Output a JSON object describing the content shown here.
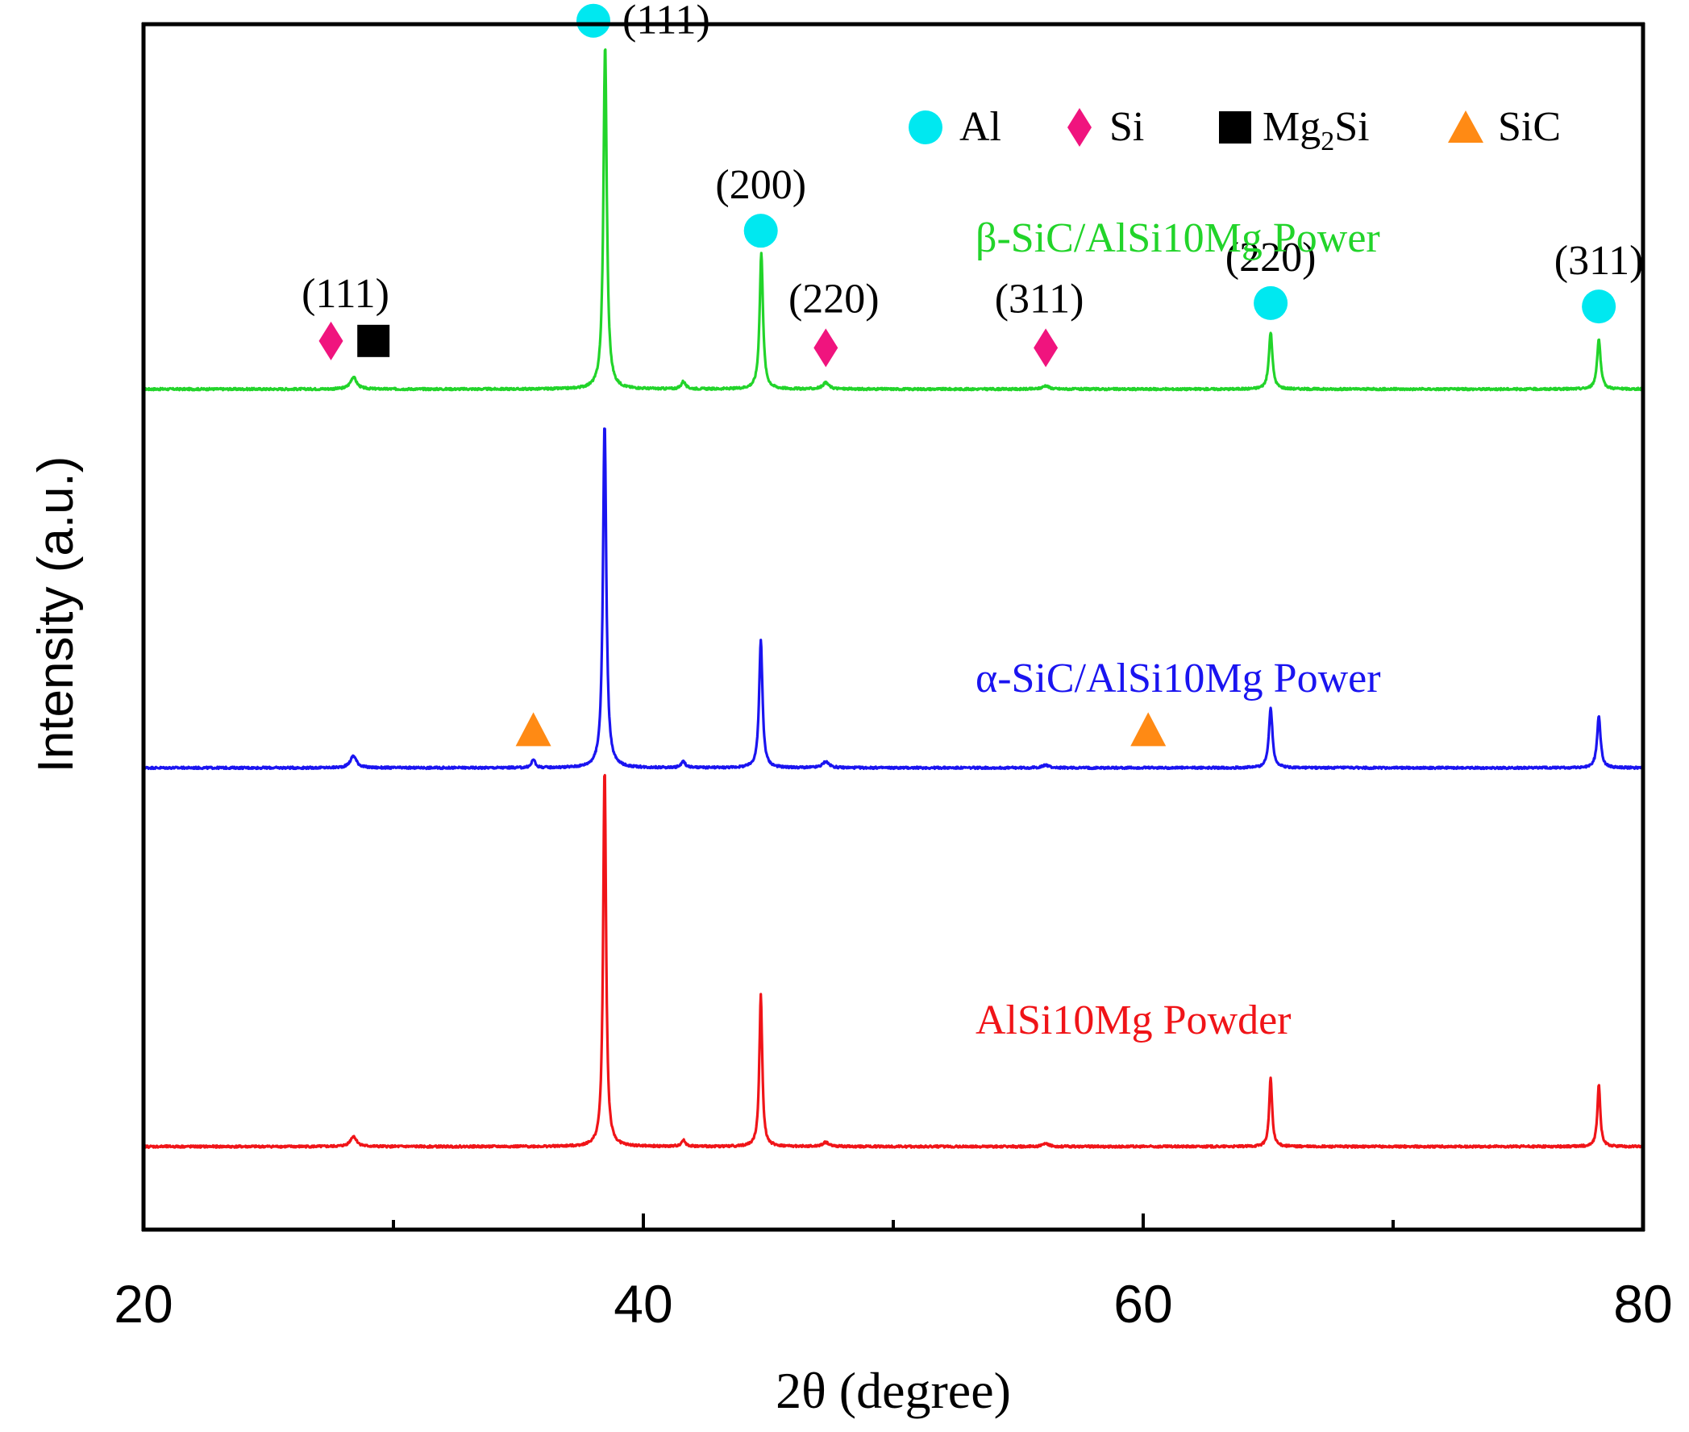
{
  "chart_data": {
    "type": "line",
    "xlabel": "2θ (degree)",
    "ylabel": "Intensity (a.u.)",
    "xlim": [
      20,
      80
    ],
    "xticks": [
      20,
      40,
      60,
      80
    ],
    "xtick_labels": [
      "20",
      "40",
      "60",
      "80"
    ],
    "y_axis_ticks": "none",
    "legend": {
      "position": "top-right",
      "entries": [
        {
          "label": "Al",
          "marker": "circle",
          "color": "#00e8f0"
        },
        {
          "label": "Si",
          "marker": "diamond",
          "color": "#f0147e"
        },
        {
          "label_main": "Mg",
          "label_sub": "2",
          "label_tail": "Si",
          "marker": "square",
          "color": "#000000"
        },
        {
          "label": "SiC",
          "marker": "triangle",
          "color": "#ff8a14"
        }
      ]
    },
    "series": [
      {
        "name": "β-SiC/AlSi10Mg Power",
        "color": "#22d42a",
        "baseline": 2.2,
        "peaks": [
          {
            "x": 28.4,
            "h": 0.035,
            "w": 0.3
          },
          {
            "x": 38.47,
            "h": 1.0,
            "w": 0.16
          },
          {
            "x": 41.6,
            "h": 0.022,
            "w": 0.2
          },
          {
            "x": 44.72,
            "h": 0.395,
            "w": 0.16
          },
          {
            "x": 47.3,
            "h": 0.018,
            "w": 0.3
          },
          {
            "x": 56.1,
            "h": 0.01,
            "w": 0.3
          },
          {
            "x": 65.1,
            "h": 0.165,
            "w": 0.17
          },
          {
            "x": 78.23,
            "h": 0.145,
            "w": 0.17
          }
        ]
      },
      {
        "name": "α-SiC/AlSi10Mg Power",
        "color": "#1a14f0",
        "baseline": 1.1,
        "peaks": [
          {
            "x": 28.4,
            "h": 0.035,
            "w": 0.3
          },
          {
            "x": 35.6,
            "h": 0.025,
            "w": 0.16
          },
          {
            "x": 38.45,
            "h": 1.0,
            "w": 0.16
          },
          {
            "x": 41.6,
            "h": 0.018,
            "w": 0.2
          },
          {
            "x": 44.7,
            "h": 0.37,
            "w": 0.16
          },
          {
            "x": 47.3,
            "h": 0.018,
            "w": 0.3
          },
          {
            "x": 56.1,
            "h": 0.008,
            "w": 0.3
          },
          {
            "x": 65.1,
            "h": 0.175,
            "w": 0.17
          },
          {
            "x": 78.23,
            "h": 0.15,
            "w": 0.17
          }
        ]
      },
      {
        "name": "AlSi10Mg Powder",
        "color": "#f01418",
        "baseline": 0.0,
        "peaks": [
          {
            "x": 28.4,
            "h": 0.03,
            "w": 0.3
          },
          {
            "x": 38.45,
            "h": 1.1,
            "w": 0.14
          },
          {
            "x": 41.6,
            "h": 0.018,
            "w": 0.2
          },
          {
            "x": 44.7,
            "h": 0.44,
            "w": 0.14
          },
          {
            "x": 47.3,
            "h": 0.012,
            "w": 0.3
          },
          {
            "x": 56.1,
            "h": 0.008,
            "w": 0.3
          },
          {
            "x": 65.1,
            "h": 0.2,
            "w": 0.14
          },
          {
            "x": 78.23,
            "h": 0.18,
            "w": 0.14
          }
        ]
      }
    ],
    "phase_markers": [
      {
        "phase": "Si",
        "marker": "diamond",
        "x": 27.5,
        "y": 2.34,
        "label": "(111)"
      },
      {
        "phase": "Mg2Si",
        "marker": "square",
        "x": 29.2,
        "y": 2.34,
        "label": ""
      },
      {
        "phase": "Al",
        "marker": "circle",
        "x": 38.0,
        "y": 3.27,
        "label": "(111)"
      },
      {
        "phase": "Al",
        "marker": "circle",
        "x": 44.7,
        "y": 2.66,
        "label": "(200)"
      },
      {
        "phase": "Si",
        "marker": "diamond",
        "x": 47.3,
        "y": 2.32,
        "label": "(220)"
      },
      {
        "phase": "Si",
        "marker": "diamond",
        "x": 56.1,
        "y": 2.32,
        "label": "(311)"
      },
      {
        "phase": "Al",
        "marker": "circle",
        "x": 65.1,
        "y": 2.45,
        "label": "(220)"
      },
      {
        "phase": "Al",
        "marker": "circle",
        "x": 78.23,
        "y": 2.44,
        "label": "(311)"
      },
      {
        "phase": "SiC",
        "marker": "triangle",
        "x": 35.6,
        "y": 1.21,
        "label": ""
      },
      {
        "phase": "SiC",
        "marker": "triangle",
        "x": 60.2,
        "y": 1.21,
        "label": ""
      }
    ]
  }
}
